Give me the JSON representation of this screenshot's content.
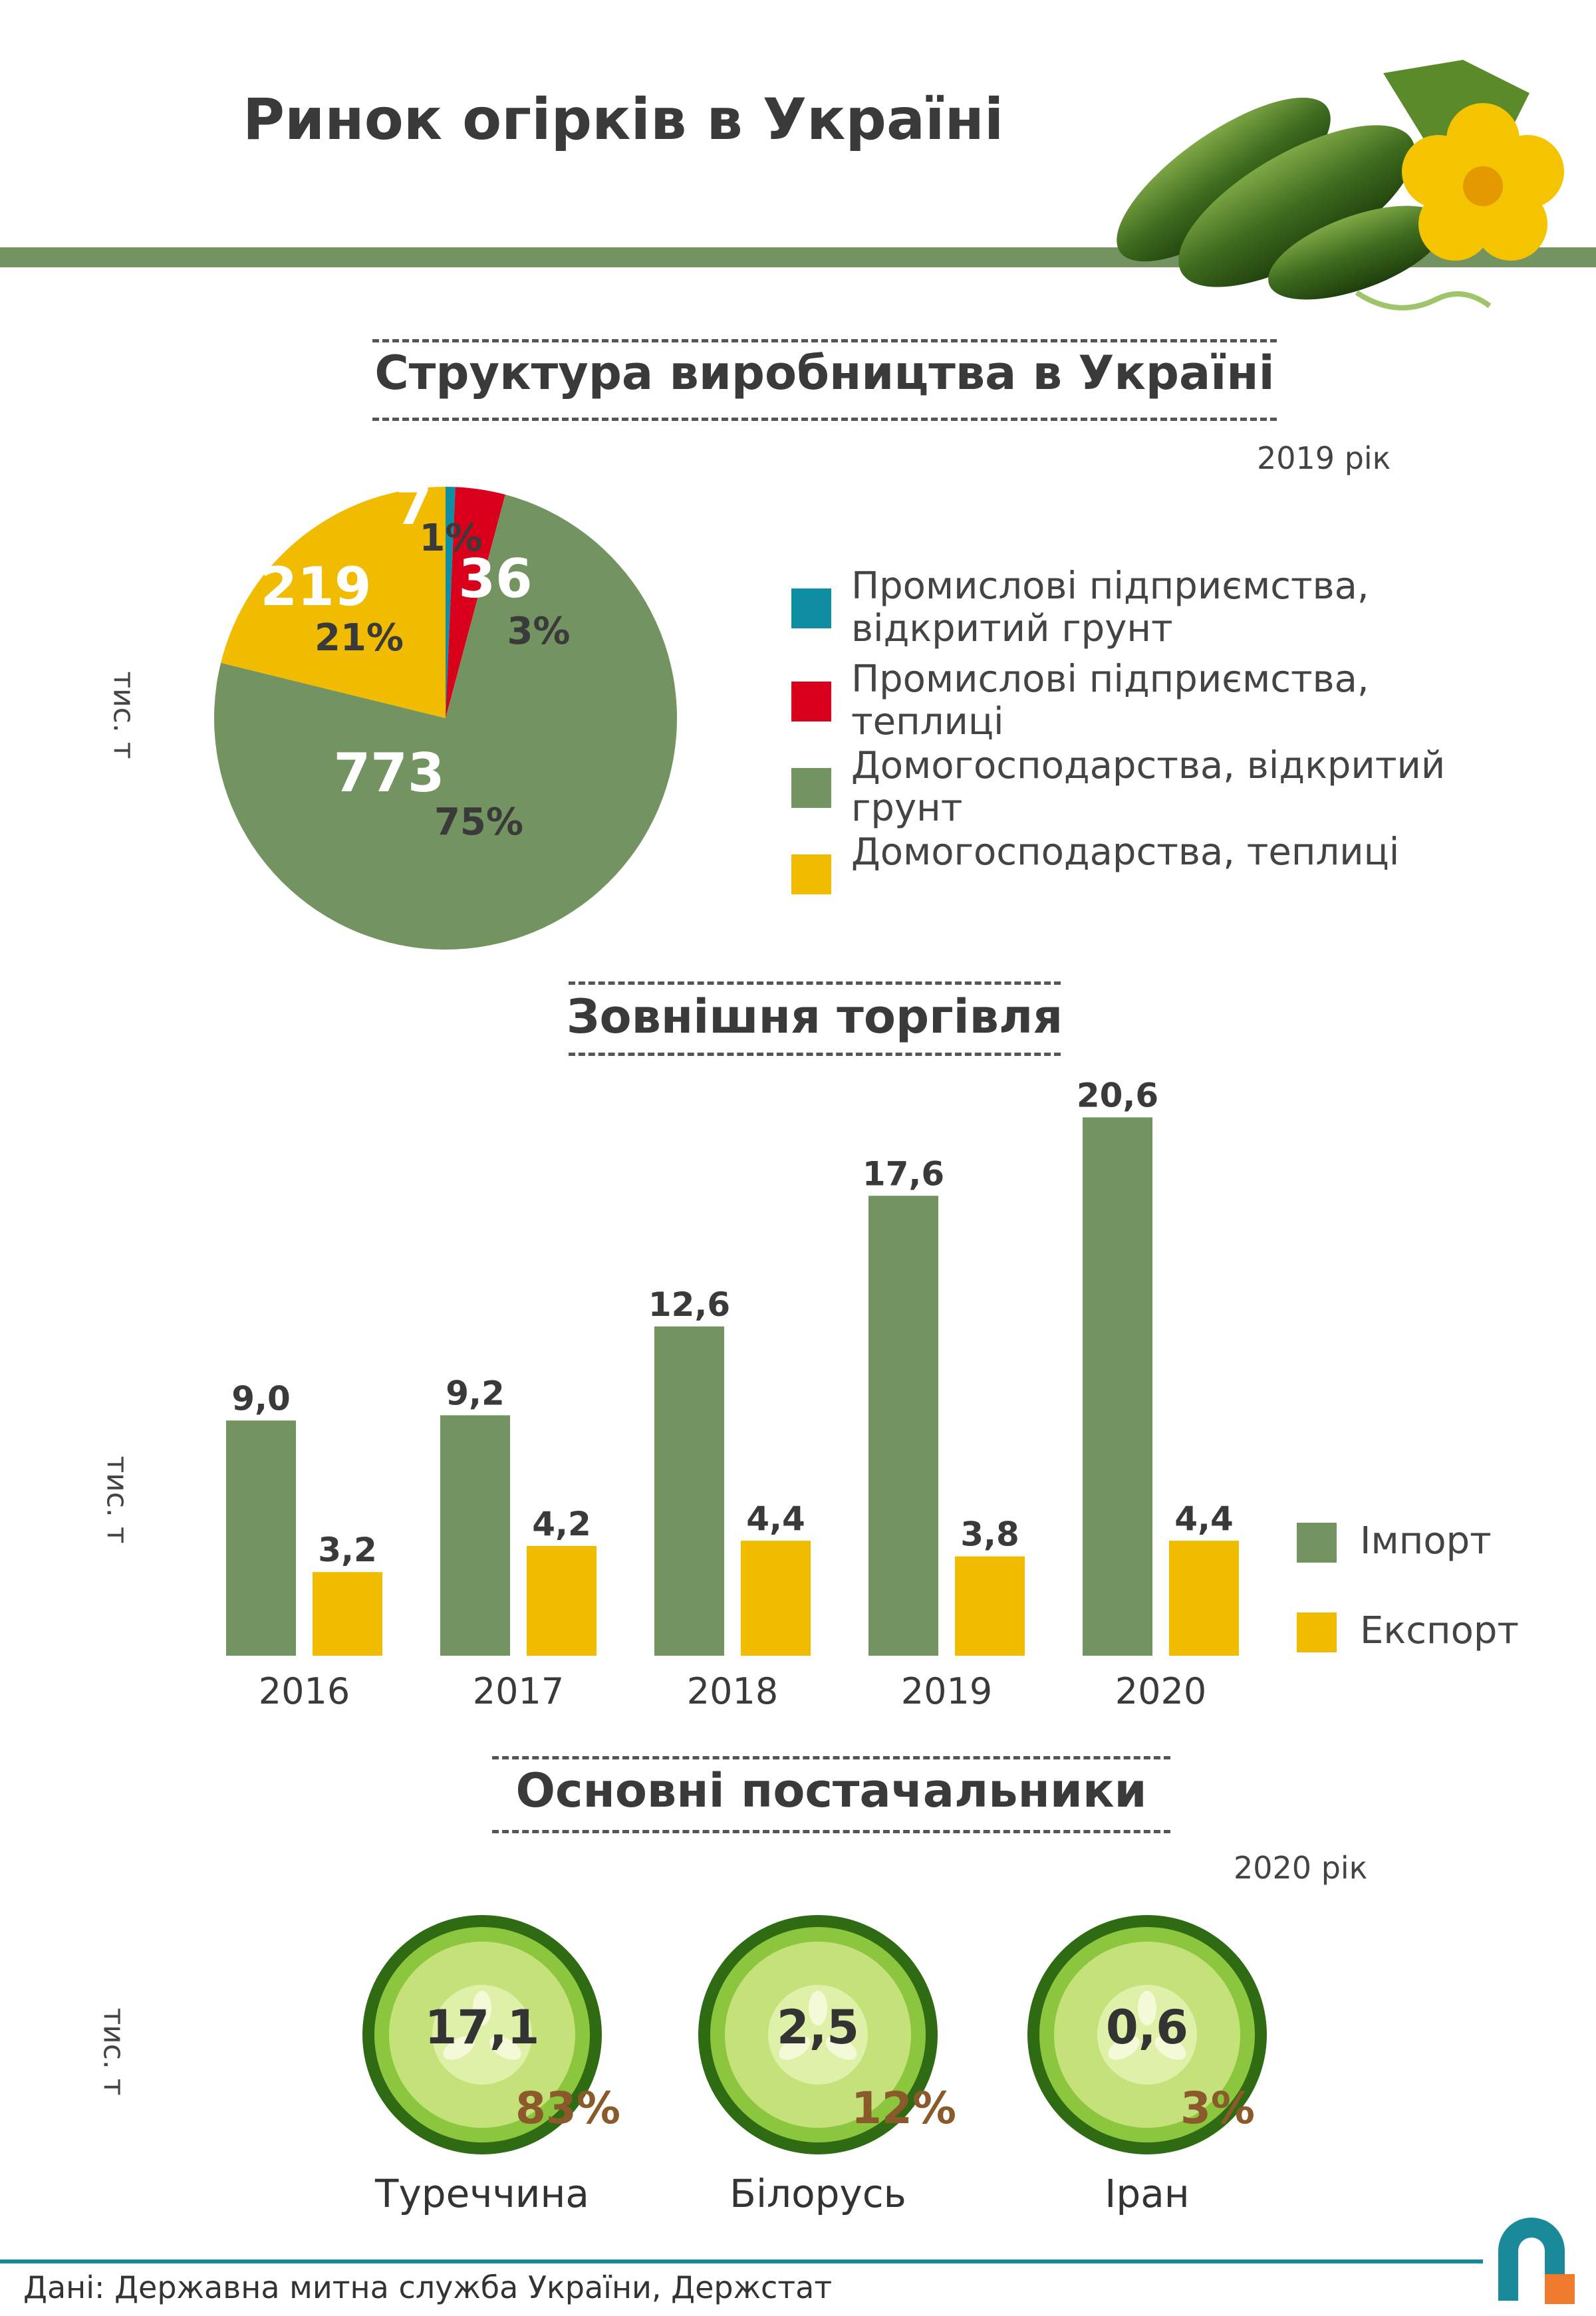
{
  "title": "Ринок огірків в Україні",
  "colors": {
    "green": "#739360",
    "yellow": "#f1bc00",
    "red": "#d9001b",
    "teal": "#0f8ea3",
    "brown": "#8b5a2b"
  },
  "production": {
    "title": "Структура виробництва в Україні",
    "year": "2019 рік",
    "unit": "тис. т"
  },
  "trade": {
    "title": "Зовнішня торгівля",
    "unit": "тис. т"
  },
  "suppliers": {
    "title": "Основні постачальники",
    "year": "2020 рік",
    "unit": "тис. т",
    "items": [
      {
        "name": "Туреччина",
        "value": "17,1",
        "pct": "83%"
      },
      {
        "name": "Білорусь",
        "value": "2,5",
        "pct": "12%"
      },
      {
        "name": "Іран",
        "value": "0,6",
        "pct": "3%"
      }
    ]
  },
  "source": "Дані: Державна митна служба України, Держстат",
  "chart_data": [
    {
      "type": "pie",
      "title": "Структура виробництва в Україні",
      "unit": "тис. т",
      "slices": [
        {
          "name": "Промислові підприємства, відкритий грунт",
          "value": 7,
          "label": "7",
          "pct": "1%",
          "color": "#0f8ea3"
        },
        {
          "name": "Промислові підприємства, теплиці",
          "value": 36,
          "label": "36",
          "pct": "3%",
          "color": "#d9001b"
        },
        {
          "name": "Домогосподарства, відкритий грунт",
          "value": 773,
          "label": "773",
          "pct": "75%",
          "color": "#739360"
        },
        {
          "name": "Домогосподарства, теплиці",
          "value": 219,
          "label": "219",
          "pct": "21%",
          "color": "#f1bc00"
        }
      ]
    },
    {
      "type": "bar",
      "title": "Зовнішня торгівля",
      "unit": "тис. т",
      "categories": [
        "2016",
        "2017",
        "2018",
        "2019",
        "2020"
      ],
      "series": [
        {
          "name": "Імпорт",
          "values": [
            9.0,
            9.2,
            12.6,
            17.6,
            20.6
          ],
          "labels": [
            "9,0",
            "9,2",
            "12,6",
            "17,6",
            "20,6"
          ],
          "color": "#739360"
        },
        {
          "name": "Експорт",
          "values": [
            3.2,
            4.2,
            4.4,
            3.8,
            4.4
          ],
          "labels": [
            "3,2",
            "4,2",
            "4,4",
            "3,8",
            "4,4"
          ],
          "color": "#f1bc00"
        }
      ]
    }
  ]
}
